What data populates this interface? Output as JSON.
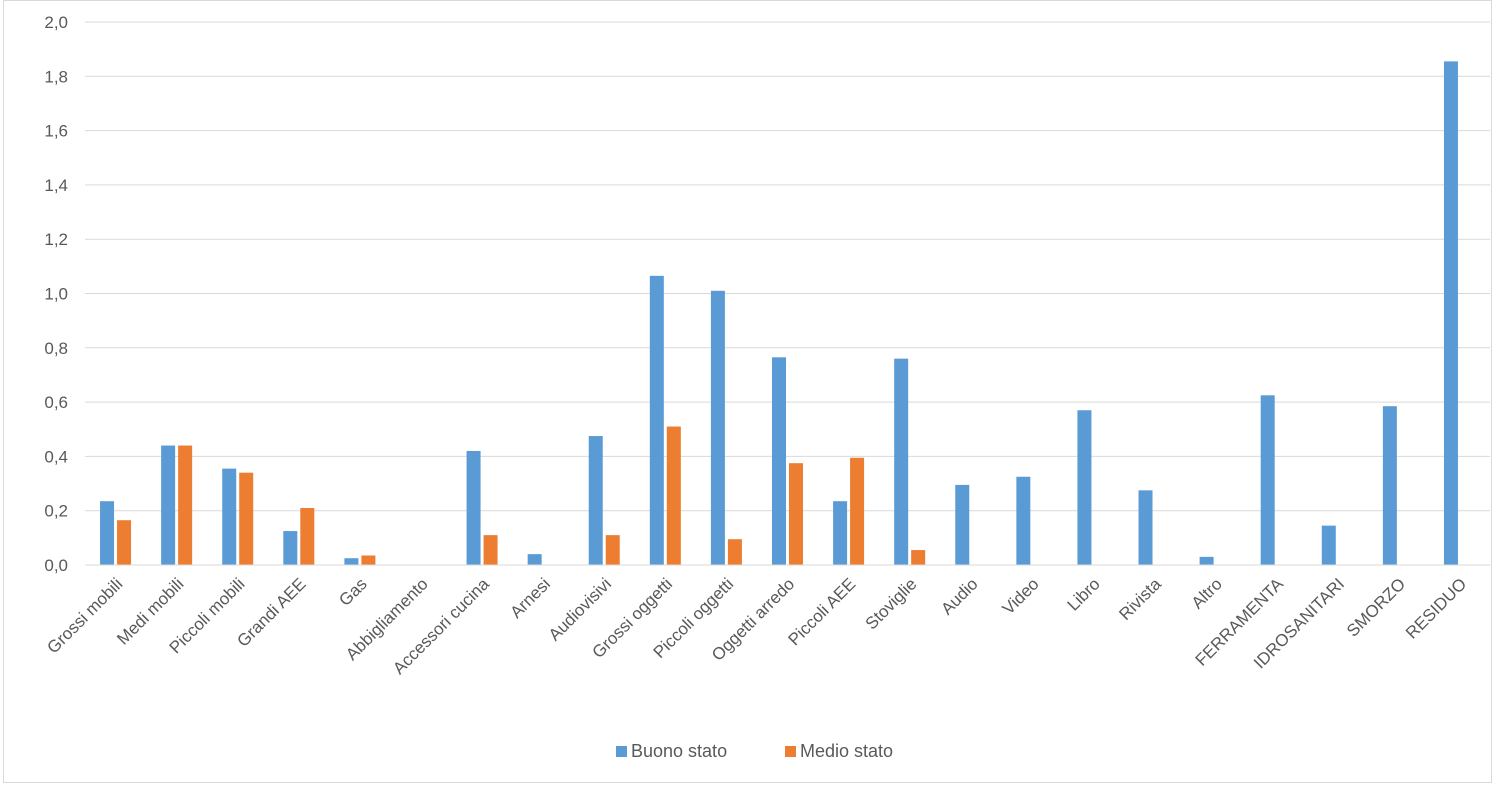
{
  "chart_data": {
    "type": "bar",
    "title": "",
    "xlabel": "",
    "ylabel": "",
    "ylim": [
      0,
      2.0
    ],
    "yticks": [
      "0,0",
      "0,2",
      "0,4",
      "0,6",
      "0,8",
      "1,0",
      "1,2",
      "1,4",
      "1,6",
      "1,8",
      "2,0"
    ],
    "grid": true,
    "legend_position": "bottom",
    "categories": [
      "Grossi mobili",
      "Medi mobili",
      "Piccoli mobili",
      "Grandi AEE",
      "Gas",
      "Abbigliamento",
      "Accessori cucina",
      "Arnesi",
      "Audiovisivi",
      "Grossi oggetti",
      "Piccoli oggetti",
      "Oggetti arredo",
      "Piccoli AEE",
      "Stoviglie",
      "Audio",
      "Video",
      "Libro",
      "Rivista",
      "Altro",
      "FERRAMENTA",
      "IDROSANITARI",
      "SMORZO",
      "RESIDUO"
    ],
    "series": [
      {
        "name": "Buono stato",
        "color": "#5b9bd5",
        "values": [
          0.235,
          0.44,
          0.355,
          0.125,
          0.025,
          0,
          0.42,
          0.04,
          0.475,
          1.065,
          1.01,
          0.765,
          0.235,
          0.76,
          0.295,
          0.325,
          0.57,
          0.275,
          0.03,
          0.625,
          0.145,
          0.585,
          1.855
        ]
      },
      {
        "name": "Medio stato",
        "color": "#ed7d31",
        "values": [
          0.165,
          0.44,
          0.34,
          0.21,
          0.035,
          0,
          0.11,
          0,
          0.11,
          0.51,
          0.095,
          0.375,
          0.395,
          0.055,
          0,
          0,
          0,
          0,
          0,
          0,
          0,
          0,
          0
        ]
      }
    ]
  }
}
